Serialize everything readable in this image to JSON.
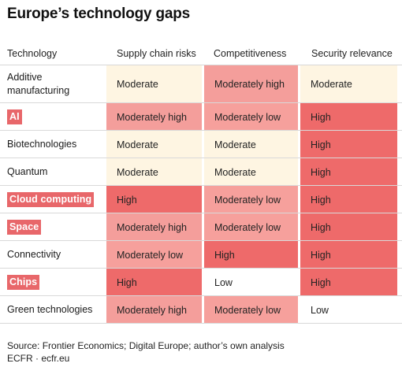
{
  "title": "Europe’s technology gaps",
  "headers": [
    "Technology",
    "Supply chain risks",
    "Competitiveness",
    "Security relevance"
  ],
  "colors": {
    "High": "#ee6a6a",
    "Moderately high": "#f49e9b",
    "Moderately low": "#f6a09c",
    "Moderate": "#fef5e2",
    "Low": "#ffffff"
  },
  "chart_data": {
    "type": "table",
    "title": "Europe’s technology gaps",
    "columns": [
      "Technology",
      "Supply chain risks",
      "Competitiveness",
      "Security relevance"
    ],
    "rows": [
      {
        "technology": "Additive manufacturing",
        "highlighted": false,
        "supply_chain_risks": "Moderate",
        "competitiveness": "Moderately high",
        "security_relevance": "Moderate"
      },
      {
        "technology": "AI",
        "highlighted": true,
        "supply_chain_risks": "Moderately high",
        "competitiveness": "Moderately low",
        "security_relevance": "High"
      },
      {
        "technology": "Biotechnologies",
        "highlighted": false,
        "supply_chain_risks": "Moderate",
        "competitiveness": "Moderate",
        "security_relevance": "High"
      },
      {
        "technology": "Quantum",
        "highlighted": false,
        "supply_chain_risks": "Moderate",
        "competitiveness": "Moderate",
        "security_relevance": "High"
      },
      {
        "technology": "Cloud computing",
        "highlighted": true,
        "supply_chain_risks": "High",
        "competitiveness": "Moderately low",
        "security_relevance": "High"
      },
      {
        "technology": "Space",
        "highlighted": true,
        "supply_chain_risks": "Moderately high",
        "competitiveness": "Moderately low",
        "security_relevance": "High"
      },
      {
        "technology": "Connectivity",
        "highlighted": false,
        "supply_chain_risks": "Moderately low",
        "competitiveness": "High",
        "security_relevance": "High"
      },
      {
        "technology": "Chips",
        "highlighted": true,
        "supply_chain_risks": "High",
        "competitiveness": "Low",
        "security_relevance": "High"
      },
      {
        "technology": "Green technologies",
        "highlighted": false,
        "supply_chain_risks": "Moderately high",
        "competitiveness": "Moderately low",
        "security_relevance": "Low"
      }
    ]
  },
  "footer": {
    "source": "Source: Frontier Economics; Digital Europe; author’s own analysis",
    "credit": "ECFR · ecfr.eu"
  }
}
